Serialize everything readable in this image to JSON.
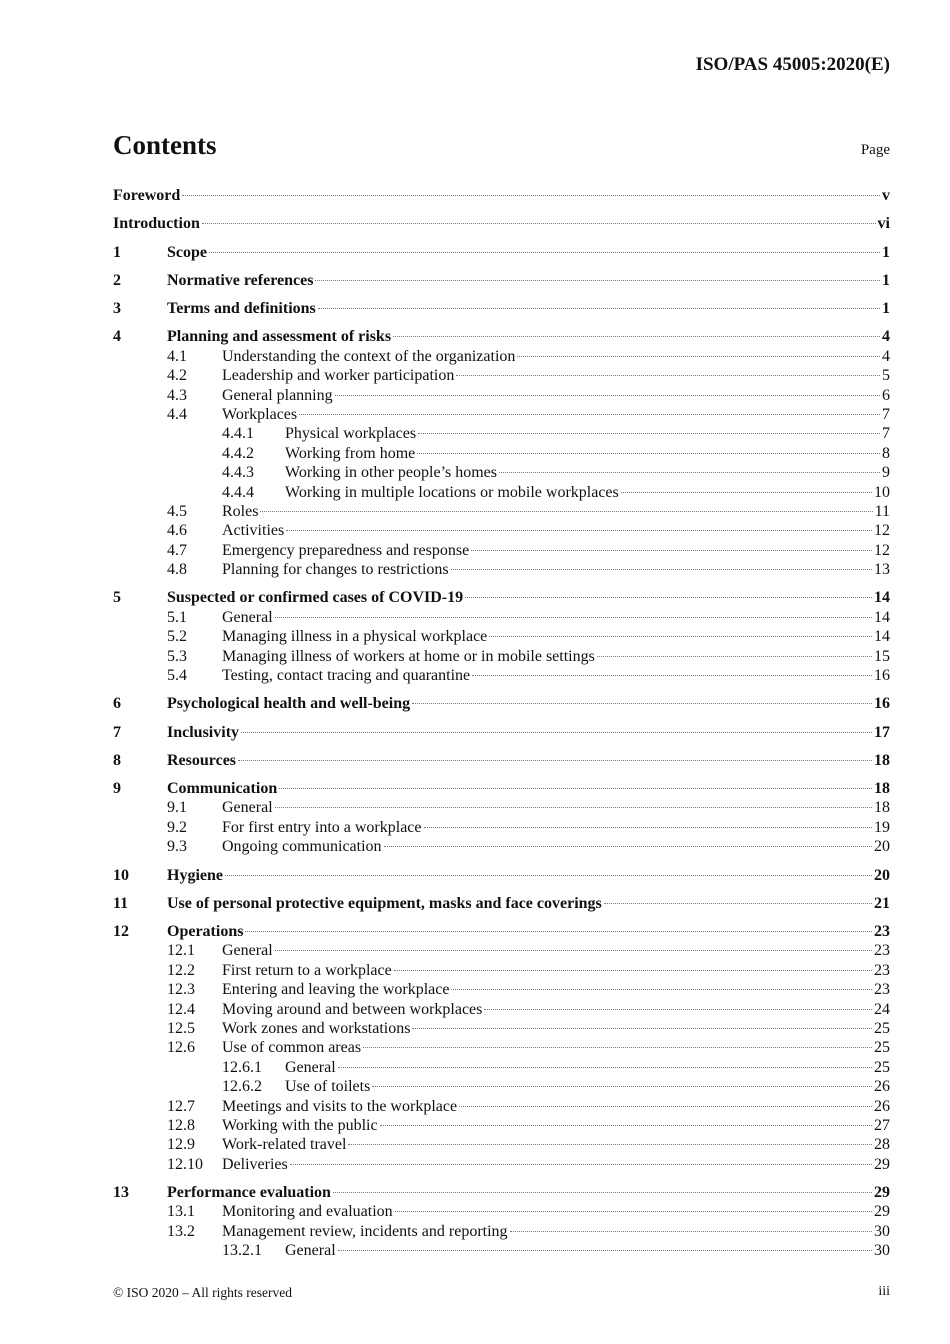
{
  "header": {
    "doc_id": "ISO/PAS 45005:2020(E)"
  },
  "toc": {
    "title": "Contents",
    "page_label": "Page",
    "entries": [
      {
        "level": 0,
        "num": "",
        "title": "Foreword",
        "page": "v"
      },
      {
        "level": 0,
        "num": "",
        "title": "Introduction",
        "page": "vi"
      },
      {
        "level": 1,
        "num": "1",
        "title": "Scope",
        "page": "1"
      },
      {
        "level": 1,
        "num": "2",
        "title": "Normative references",
        "page": "1"
      },
      {
        "level": 1,
        "num": "3",
        "title": "Terms and definitions",
        "page": "1"
      },
      {
        "level": 1,
        "num": "4",
        "title": "Planning and assessment of risks",
        "page": "4"
      },
      {
        "level": 2,
        "num": "4.1",
        "title": "Understanding the context of the organization",
        "page": "4"
      },
      {
        "level": 2,
        "num": "4.2",
        "title": "Leadership and worker participation",
        "page": "5"
      },
      {
        "level": 2,
        "num": "4.3",
        "title": "General planning",
        "page": "6"
      },
      {
        "level": 2,
        "num": "4.4",
        "title": "Workplaces",
        "page": "7"
      },
      {
        "level": 3,
        "num": "4.4.1",
        "title": "Physical workplaces",
        "page": "7"
      },
      {
        "level": 3,
        "num": "4.4.2",
        "title": "Working from home",
        "page": "8"
      },
      {
        "level": 3,
        "num": "4.4.3",
        "title": "Working in other people’s homes",
        "page": "9"
      },
      {
        "level": 3,
        "num": "4.4.4",
        "title": "Working in multiple locations or mobile workplaces",
        "page": "10"
      },
      {
        "level": 2,
        "num": "4.5",
        "title": "Roles",
        "page": "11"
      },
      {
        "level": 2,
        "num": "4.6",
        "title": "Activities",
        "page": "12"
      },
      {
        "level": 2,
        "num": "4.7",
        "title": "Emergency preparedness and response",
        "page": "12"
      },
      {
        "level": 2,
        "num": "4.8",
        "title": "Planning for changes to restrictions",
        "page": "13"
      },
      {
        "level": 1,
        "num": "5",
        "title": "Suspected or confirmed cases of COVID-19",
        "page": "14"
      },
      {
        "level": 2,
        "num": "5.1",
        "title": "General",
        "page": "14"
      },
      {
        "level": 2,
        "num": "5.2",
        "title": "Managing illness in a physical workplace",
        "page": "14"
      },
      {
        "level": 2,
        "num": "5.3",
        "title": "Managing illness of workers at home or in mobile settings",
        "page": "15"
      },
      {
        "level": 2,
        "num": "5.4",
        "title": "Testing, contact tracing and quarantine",
        "page": "16"
      },
      {
        "level": 1,
        "num": "6",
        "title": "Psychological health and well-being",
        "page": "16"
      },
      {
        "level": 1,
        "num": "7",
        "title": "Inclusivity",
        "page": "17"
      },
      {
        "level": 1,
        "num": "8",
        "title": "Resources",
        "page": "18"
      },
      {
        "level": 1,
        "num": "9",
        "title": "Communication",
        "page": "18"
      },
      {
        "level": 2,
        "num": "9.1",
        "title": "General",
        "page": "18"
      },
      {
        "level": 2,
        "num": "9.2",
        "title": "For first entry into a workplace",
        "page": "19"
      },
      {
        "level": 2,
        "num": "9.3",
        "title": "Ongoing communication",
        "page": "20"
      },
      {
        "level": 1,
        "num": "10",
        "title": "Hygiene",
        "page": "20"
      },
      {
        "level": 1,
        "num": "11",
        "title": "Use of personal protective equipment, masks and face coverings",
        "page": "21"
      },
      {
        "level": 1,
        "num": "12",
        "title": "Operations",
        "page": "23"
      },
      {
        "level": 2,
        "num": "12.1",
        "title": "General",
        "page": "23"
      },
      {
        "level": 2,
        "num": "12.2",
        "title": "First return to a workplace",
        "page": "23"
      },
      {
        "level": 2,
        "num": "12.3",
        "title": "Entering and leaving the workplace",
        "page": "23"
      },
      {
        "level": 2,
        "num": "12.4",
        "title": "Moving around and between workplaces",
        "page": "24"
      },
      {
        "level": 2,
        "num": "12.5",
        "title": "Work zones and workstations",
        "page": "25"
      },
      {
        "level": 2,
        "num": "12.6",
        "title": "Use of common areas",
        "page": "25"
      },
      {
        "level": 3,
        "num": "12.6.1",
        "title": "General",
        "page": "25"
      },
      {
        "level": 3,
        "num": "12.6.2",
        "title": "Use of toilets",
        "page": "26"
      },
      {
        "level": 2,
        "num": "12.7",
        "title": "Meetings and visits to the workplace",
        "page": "26"
      },
      {
        "level": 2,
        "num": "12.8",
        "title": "Working with the public",
        "page": "27"
      },
      {
        "level": 2,
        "num": "12.9",
        "title": "Work-related travel",
        "page": "28"
      },
      {
        "level": 2,
        "num": "12.10",
        "title": "Deliveries",
        "page": "29"
      },
      {
        "level": 1,
        "num": "13",
        "title": "Performance evaluation",
        "page": "29"
      },
      {
        "level": 2,
        "num": "13.1",
        "title": "Monitoring and evaluation",
        "page": "29"
      },
      {
        "level": 2,
        "num": "13.2",
        "title": "Management review, incidents and reporting",
        "page": "30"
      },
      {
        "level": 3,
        "num": "13.2.1",
        "title": "General",
        "page": "30"
      }
    ]
  },
  "footer": {
    "copyright": "© ISO 2020 – All rights reserved",
    "page_number": "iii"
  }
}
